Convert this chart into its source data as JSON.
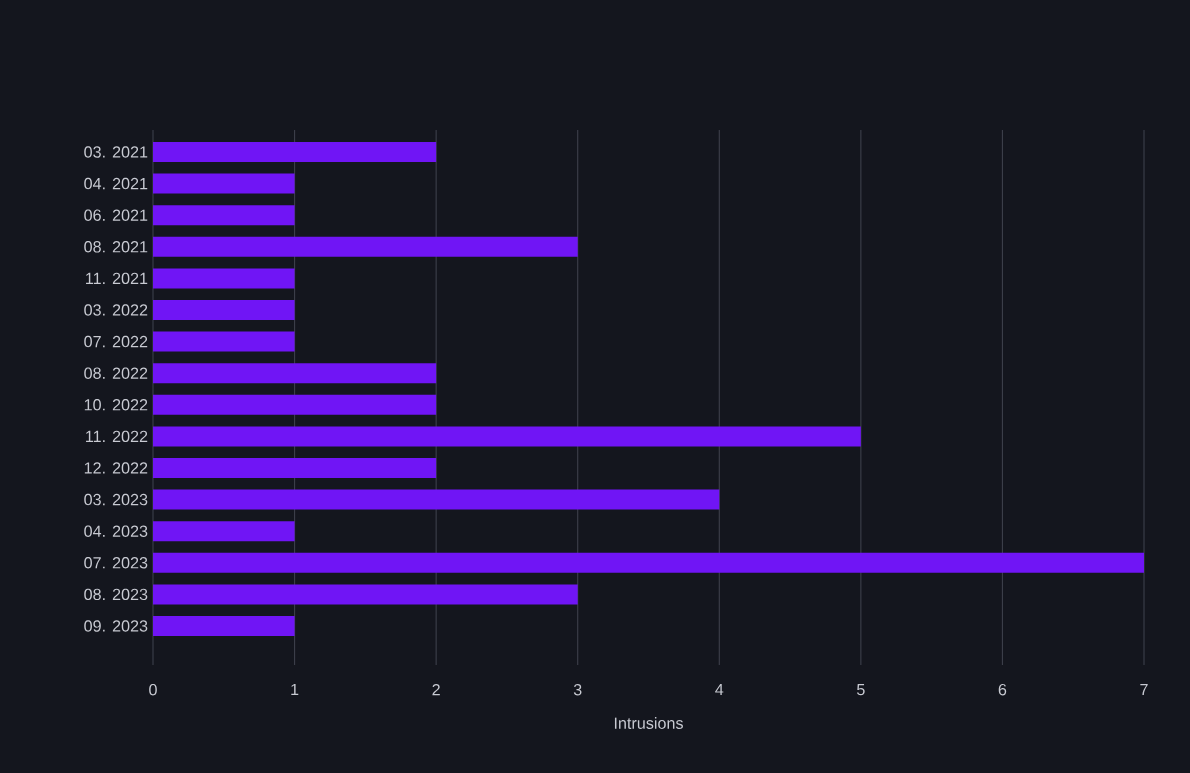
{
  "chart_data": {
    "type": "bar",
    "orientation": "horizontal",
    "xlabel": "Intrusions",
    "categories": [
      "03. 2021",
      "04. 2021",
      "06. 2021",
      "08. 2021",
      "11. 2021",
      "03. 2022",
      "07. 2022",
      "08. 2022",
      "10. 2022",
      "11. 2022",
      "12. 2022",
      "03. 2023",
      "04. 2023",
      "07. 2023",
      "08. 2023",
      "09. 2023"
    ],
    "values": [
      2,
      1,
      1,
      3,
      1,
      1,
      1,
      2,
      2,
      5,
      2,
      4,
      1,
      7,
      3,
      1
    ],
    "color": "#7015f5",
    "xlim": [
      0,
      7
    ],
    "xticks": [
      0,
      1,
      2,
      3,
      4,
      5,
      6,
      7
    ],
    "grid": "x"
  }
}
